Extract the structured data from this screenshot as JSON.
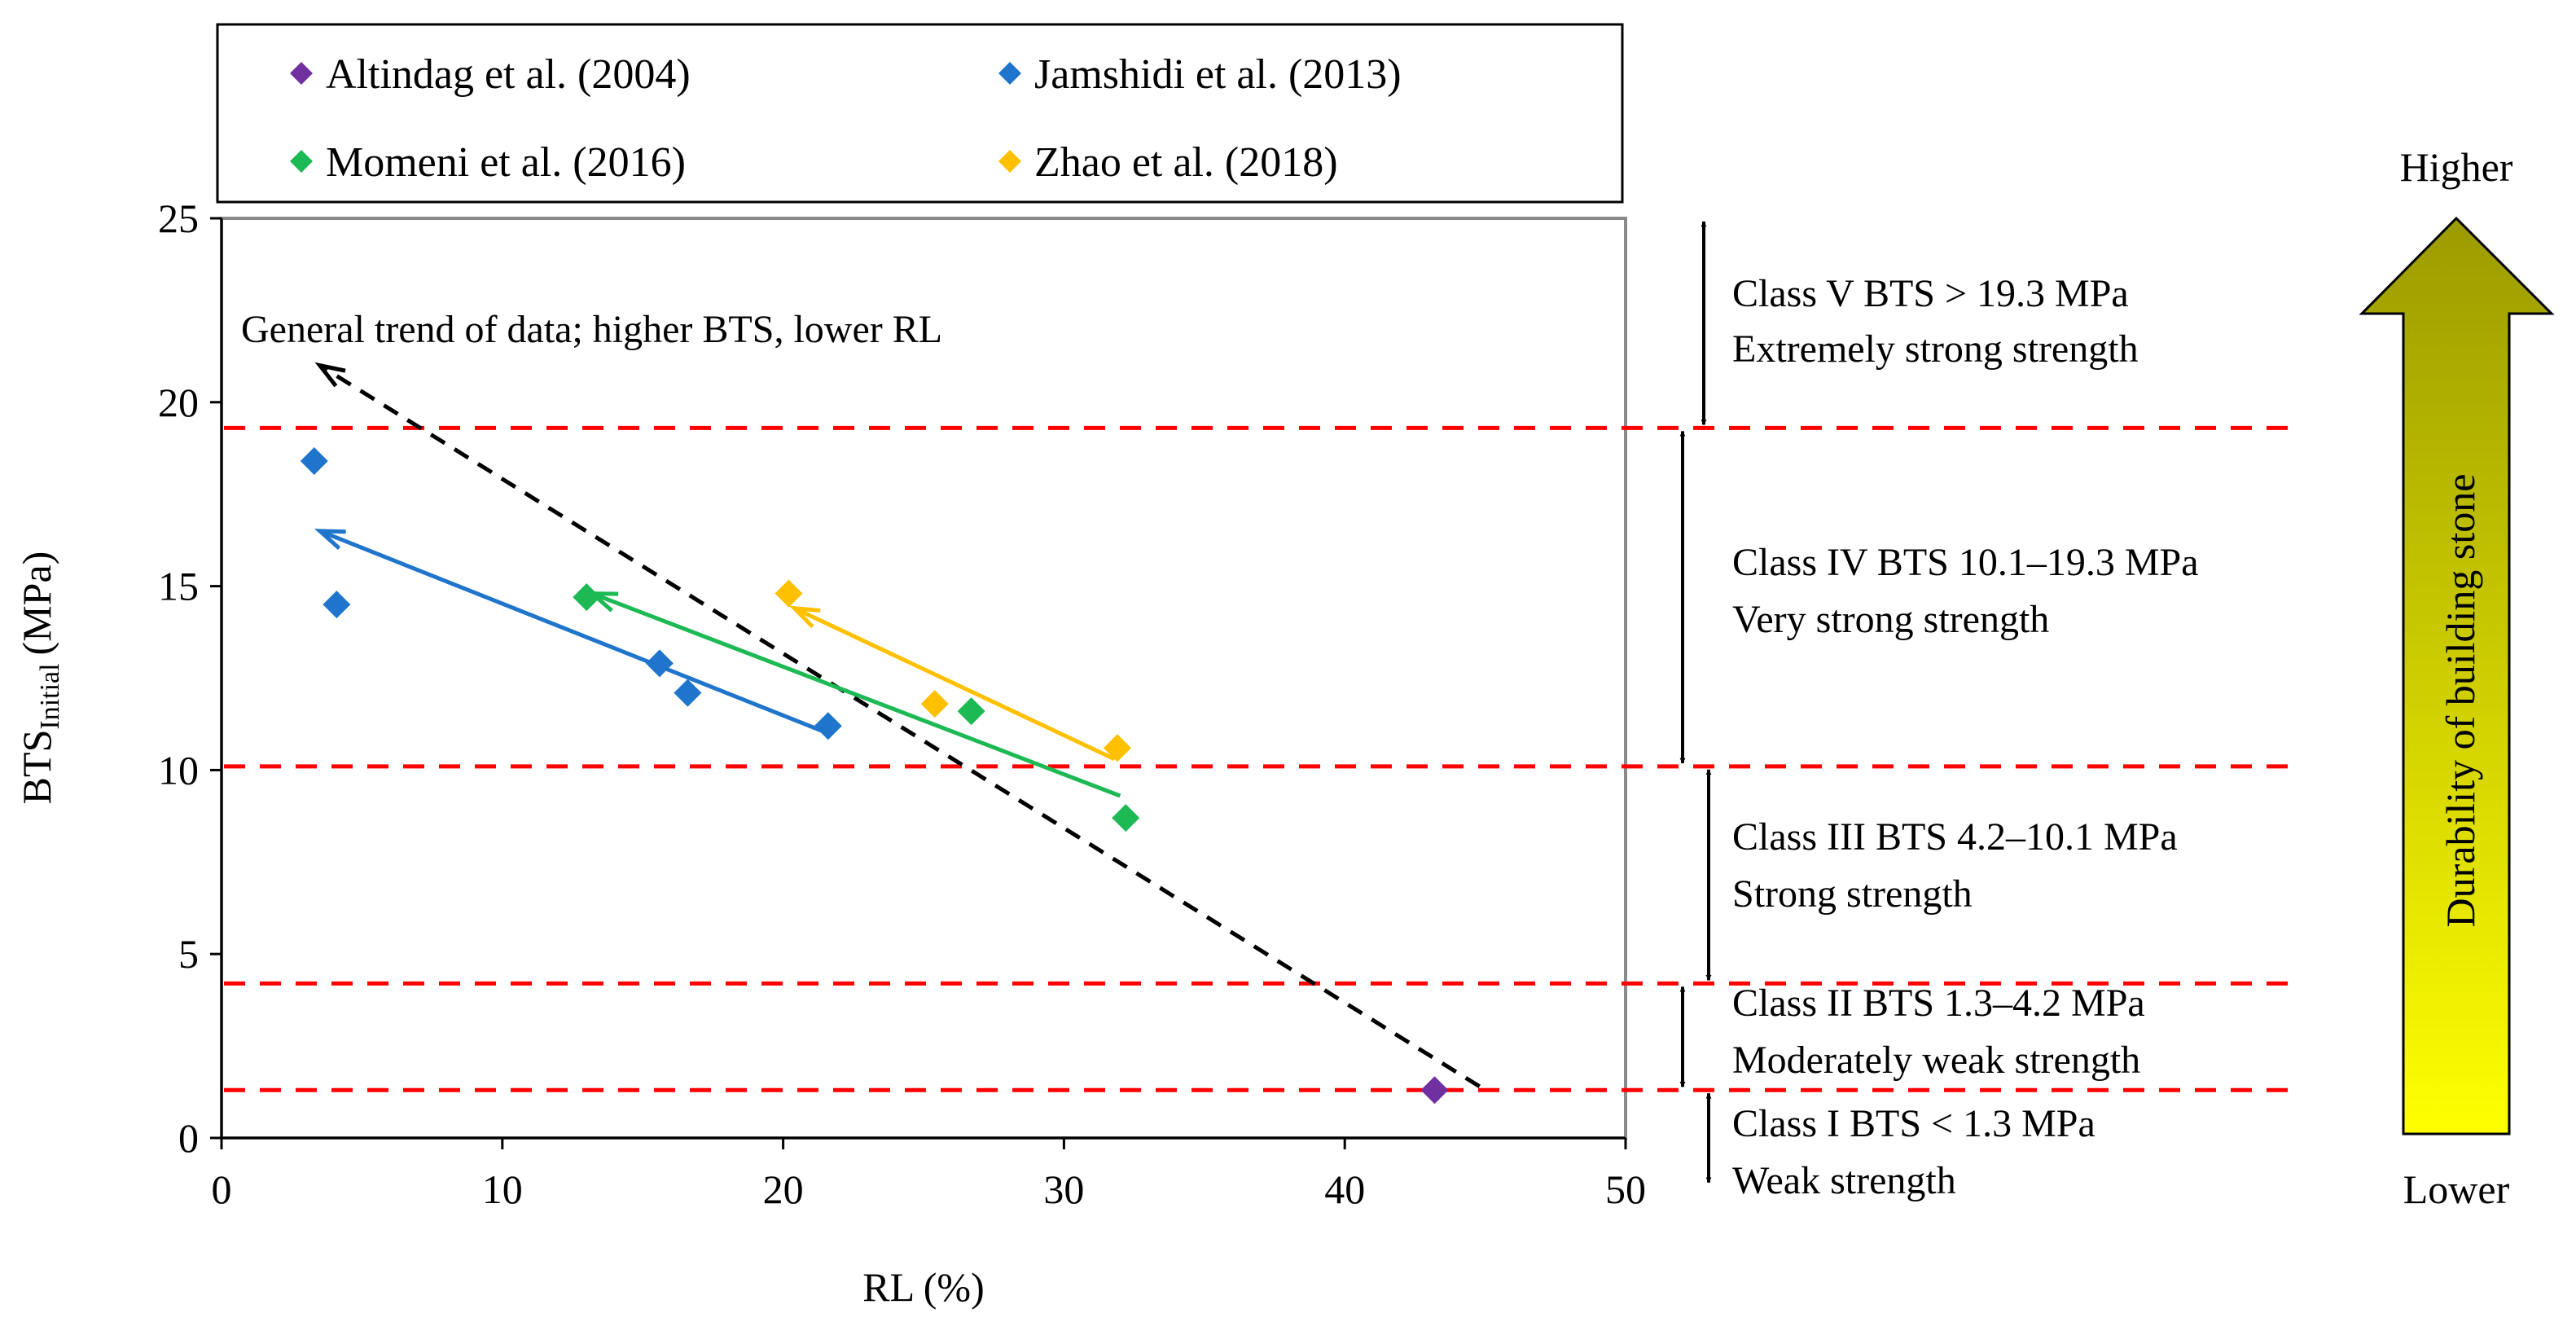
{
  "colors": {
    "altindag": "#7030A0",
    "jamshidi": "#1F74CC",
    "momeni": "#1DB954",
    "zhao": "#FFC000",
    "class_line": "#FF0000",
    "trend": "#000000",
    "arrow_top": "#9B9B00",
    "arrow_bottom": "#FFFF00"
  },
  "chart_data": {
    "type": "scatter",
    "title": "",
    "xlabel": "RL (%)",
    "ylabel_main": "BTS",
    "ylabel_sub": "Initial",
    "ylabel_unit": "(MPa)",
    "xlim": [
      0,
      50
    ],
    "ylim": [
      0,
      25
    ],
    "xticks": [
      0,
      10,
      20,
      30,
      40,
      50
    ],
    "yticks": [
      0,
      5,
      10,
      15,
      20,
      25
    ],
    "legend_position": "top",
    "series": [
      {
        "name": "Altindag et al. (2004)",
        "color_key": "altindag",
        "points": [
          [
            43.2,
            1.3
          ]
        ],
        "trend": null
      },
      {
        "name": "Jamshidi et al. (2013)",
        "color_key": "jamshidi",
        "points": [
          [
            3.3,
            18.4
          ],
          [
            4.1,
            14.5
          ],
          [
            15.6,
            12.9
          ],
          [
            16.6,
            12.1
          ],
          [
            21.6,
            11.2
          ]
        ],
        "trend": [
          [
            21.6,
            11.0
          ],
          [
            3.5,
            16.5
          ]
        ]
      },
      {
        "name": "Momeni et al. (2016)",
        "color_key": "momeni",
        "points": [
          [
            13.0,
            14.7
          ],
          [
            26.7,
            11.6
          ],
          [
            32.2,
            8.7
          ]
        ],
        "trend": [
          [
            32.0,
            9.3
          ],
          [
            13.2,
            14.8
          ]
        ]
      },
      {
        "name": "Zhao et al. (2018)",
        "color_key": "zhao",
        "points": [
          [
            20.2,
            14.8
          ],
          [
            25.4,
            11.8
          ],
          [
            31.9,
            10.6
          ]
        ],
        "trend": [
          [
            31.8,
            10.3
          ],
          [
            20.4,
            14.4
          ]
        ]
      }
    ],
    "general_trend": {
      "label": "General trend of data; higher BTS, lower RL",
      "from": [
        44.8,
        1.4
      ],
      "to": [
        3.5,
        21.0
      ]
    },
    "class_lines": [
      19.3,
      10.1,
      4.2,
      1.3
    ],
    "classes": [
      {
        "line1": "Class V BTS > 19.3 MPa",
        "line2": "Extremely strong strength",
        "range": [
          19.3,
          25
        ]
      },
      {
        "line1": "Class IV BTS 10.1–19.3 MPa",
        "line2": "Very strong strength",
        "range": [
          10.1,
          19.3
        ]
      },
      {
        "line1": "Class III BTS 4.2–10.1 MPa",
        "line2": "Strong strength",
        "range": [
          4.2,
          10.1
        ]
      },
      {
        "line1": "Class II BTS 1.3–4.2 MPa",
        "line2": "Moderately weak strength",
        "range": [
          1.3,
          4.2
        ]
      },
      {
        "line1": "Class I BTS < 1.3 MPa",
        "line2": "Weak strength",
        "range": [
          -1.3,
          1.3
        ]
      }
    ],
    "durability": {
      "label": "Durability of building stone",
      "top": "Higher",
      "bottom": "Lower"
    }
  }
}
